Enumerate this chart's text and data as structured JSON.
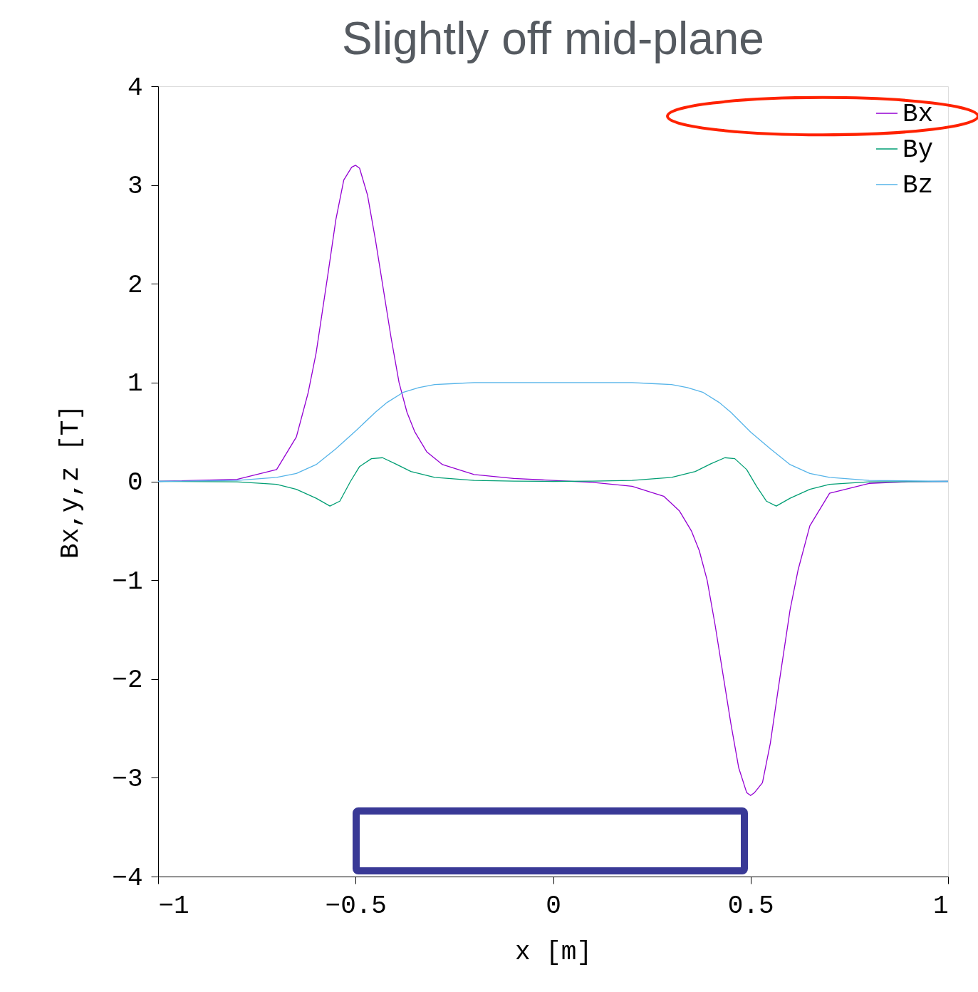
{
  "chart_data": {
    "type": "line",
    "title": "Slightly off mid-plane",
    "xlabel": "x [m]",
    "ylabel": "Bx,y,z [T]",
    "xlim": [
      -1,
      1
    ],
    "xticks": [
      -1,
      -0.5,
      0,
      0.5,
      1
    ],
    "ylim": [
      -4,
      4
    ],
    "yticks": [
      -4,
      -3,
      -2,
      -1,
      0,
      1,
      2,
      3,
      4
    ],
    "grid": false,
    "legend": "top right",
    "marker": "none",
    "line_style": "solid",
    "series": [
      {
        "name": "Bx",
        "color": "#9400d3",
        "x": [
          -1,
          -0.8,
          -0.7,
          -0.65,
          -0.62,
          -0.6,
          -0.57,
          -0.55,
          -0.53,
          -0.51,
          -0.5,
          -0.49,
          -0.47,
          -0.45,
          -0.43,
          -0.41,
          -0.39,
          -0.37,
          -0.35,
          -0.32,
          -0.28,
          -0.2,
          -0.1,
          0,
          0.1,
          0.2,
          0.28,
          0.32,
          0.35,
          0.37,
          0.39,
          0.41,
          0.43,
          0.45,
          0.47,
          0.49,
          0.5,
          0.51,
          0.53,
          0.55,
          0.57,
          0.6,
          0.62,
          0.65,
          0.7,
          0.8,
          0.9,
          1
        ],
        "values": [
          0,
          0.02,
          0.12,
          0.45,
          0.9,
          1.3,
          2.1,
          2.65,
          3.05,
          3.18,
          3.2,
          3.17,
          2.9,
          2.45,
          1.95,
          1.45,
          1.0,
          0.7,
          0.5,
          0.3,
          0.17,
          0.07,
          0.03,
          0.01,
          -0.01,
          -0.05,
          -0.15,
          -0.3,
          -0.5,
          -0.7,
          -1.0,
          -1.45,
          -1.95,
          -2.45,
          -2.9,
          -3.15,
          -3.18,
          -3.15,
          -3.05,
          -2.65,
          -2.1,
          -1.3,
          -0.9,
          -0.45,
          -0.12,
          -0.02,
          -0.003,
          0
        ]
      },
      {
        "name": "By",
        "color": "#009e73",
        "x": [
          -1,
          -0.8,
          -0.7,
          -0.65,
          -0.6,
          -0.565,
          -0.54,
          -0.513,
          -0.49,
          -0.46,
          -0.432,
          -0.4,
          -0.36,
          -0.3,
          -0.2,
          -0.1,
          0,
          0.1,
          0.2,
          0.3,
          0.36,
          0.4,
          0.435,
          0.46,
          0.49,
          0.515,
          0.54,
          0.565,
          0.6,
          0.65,
          0.7,
          0.8,
          1
        ],
        "values": [
          0,
          -0.005,
          -0.03,
          -0.08,
          -0.17,
          -0.25,
          -0.2,
          0,
          0.15,
          0.23,
          0.24,
          0.18,
          0.1,
          0.04,
          0.01,
          0.003,
          0,
          0.003,
          0.01,
          0.04,
          0.1,
          0.18,
          0.24,
          0.23,
          0.12,
          -0.05,
          -0.2,
          -0.25,
          -0.17,
          -0.08,
          -0.03,
          -0.005,
          0
        ]
      },
      {
        "name": "Bz",
        "color": "#56b4e9",
        "x": [
          -1,
          -0.8,
          -0.7,
          -0.65,
          -0.6,
          -0.55,
          -0.5,
          -0.45,
          -0.42,
          -0.38,
          -0.34,
          -0.3,
          -0.25,
          -0.2,
          0,
          0.2,
          0.25,
          0.3,
          0.34,
          0.38,
          0.42,
          0.45,
          0.5,
          0.55,
          0.6,
          0.65,
          0.7,
          0.8,
          1
        ],
        "values": [
          0,
          0.01,
          0.04,
          0.08,
          0.17,
          0.33,
          0.51,
          0.7,
          0.8,
          0.9,
          0.95,
          0.98,
          0.99,
          1,
          1,
          1,
          0.99,
          0.98,
          0.95,
          0.9,
          0.8,
          0.7,
          0.5,
          0.33,
          0.17,
          0.08,
          0.04,
          0.01,
          0
        ]
      }
    ]
  }
}
